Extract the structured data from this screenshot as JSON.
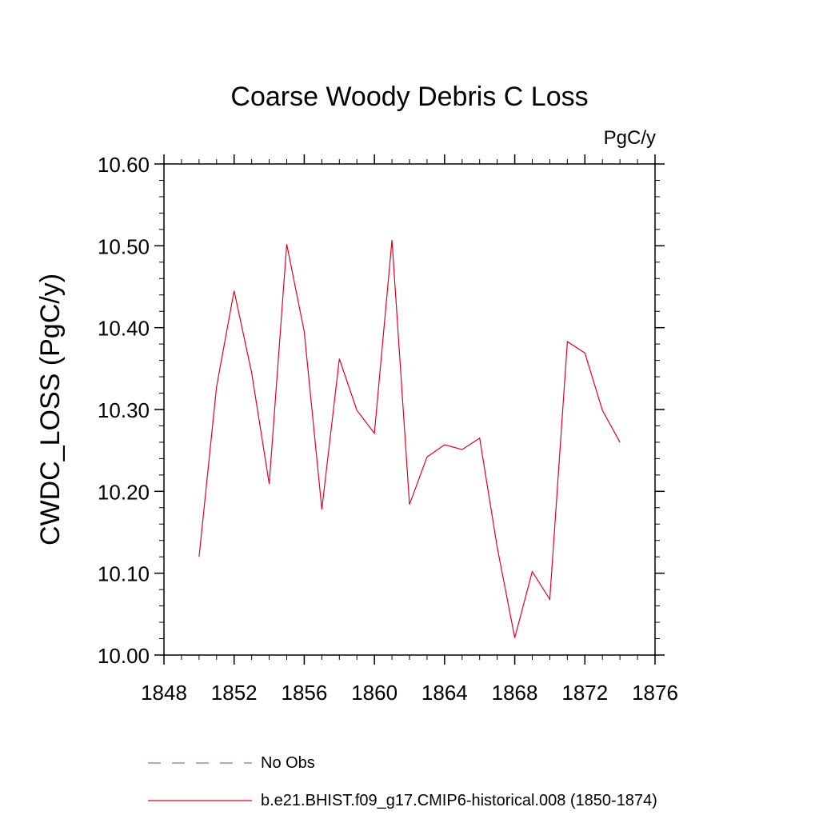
{
  "chart_data": {
    "type": "line",
    "title": "Coarse Woody Debris C Loss",
    "units_label": "PgC/y",
    "xlabel": "",
    "ylabel": "CWDC_LOSS  (PgC/y)",
    "xlim": [
      1848,
      1876
    ],
    "ylim": [
      10.0,
      10.6
    ],
    "xticks": [
      1848,
      1852,
      1856,
      1860,
      1864,
      1868,
      1872,
      1876
    ],
    "yticks": [
      "10.00",
      "10.10",
      "10.20",
      "10.30",
      "10.40",
      "10.50",
      "10.60"
    ],
    "grid": false,
    "legend_position": "bottom",
    "legend": [
      {
        "label": "No Obs",
        "style": "dashed",
        "color": "#7b73c8"
      },
      {
        "label": "b.e21.BHIST.f09_g17.CMIP6-historical.008 (1850-1874)",
        "style": "solid",
        "color": "#e8001c"
      }
    ],
    "series": [
      {
        "name": "b.e21.BHIST.f09_g17.CMIP6-historical.008 (1850-1874)",
        "color": "#e8001c",
        "x": [
          1850,
          1851,
          1852,
          1853,
          1854,
          1855,
          1856,
          1857,
          1858,
          1859,
          1860,
          1861,
          1862,
          1863,
          1864,
          1865,
          1866,
          1867,
          1868,
          1869,
          1870,
          1871,
          1872,
          1873,
          1874
        ],
        "values": [
          10.12,
          10.328,
          10.445,
          10.345,
          10.209,
          10.502,
          10.395,
          10.178,
          10.362,
          10.299,
          10.271,
          10.507,
          10.184,
          10.242,
          10.257,
          10.251,
          10.265,
          10.132,
          10.021,
          10.102,
          10.068,
          10.383,
          10.369,
          10.299,
          10.26
        ]
      }
    ]
  }
}
